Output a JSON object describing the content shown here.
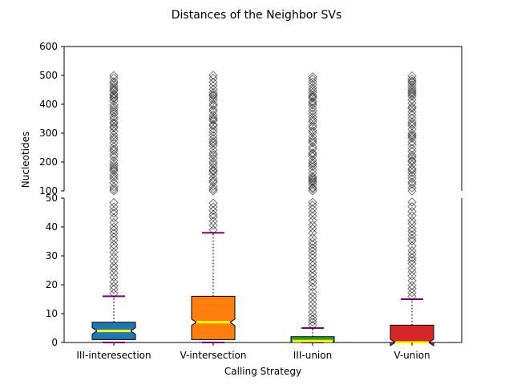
{
  "chart_data": {
    "type": "box",
    "title": "Distances of the Neighbor SVs",
    "xlabel": "Calling Strategy",
    "ylabel": "Nucleotides",
    "broken_y_axis": true,
    "upper_panel": {
      "ylim": [
        100,
        600
      ],
      "yticks": [
        "100",
        "200",
        "300",
        "400",
        "500",
        "600"
      ]
    },
    "lower_panel": {
      "ylim": [
        0,
        50
      ],
      "yticks": [
        "0",
        "10",
        "20",
        "30",
        "40",
        "50"
      ]
    },
    "grid": false,
    "notched": true,
    "median_color": "#ffff00",
    "whisker_color": "#800080",
    "flier_marker": "diamond",
    "categories": [
      "III-interesection",
      "V-intersection",
      "III-union",
      "V-union"
    ],
    "boxes": [
      {
        "category": "III-interesection",
        "color": "#1f77b4",
        "whislo": 0,
        "q1": 1,
        "median": 4,
        "q3": 7,
        "whishi": 16,
        "fliers_from": 16,
        "fliers_to": 500
      },
      {
        "category": "V-intersection",
        "color": "#ff7f0e",
        "whislo": 0,
        "q1": 1,
        "median": 7,
        "q3": 16,
        "whishi": 38,
        "fliers_from": 38,
        "fliers_to": 500
      },
      {
        "category": "III-union",
        "color": "#2ca02c",
        "whislo": 0,
        "q1": 0,
        "median": 0.5,
        "q3": 2,
        "whishi": 5,
        "fliers_from": 5,
        "fliers_to": 500
      },
      {
        "category": "V-union",
        "color": "#d62728",
        "whislo": 0,
        "q1": 0,
        "median": 0,
        "q3": 6,
        "whishi": 15,
        "fliers_from": 15,
        "fliers_to": 500
      }
    ]
  }
}
